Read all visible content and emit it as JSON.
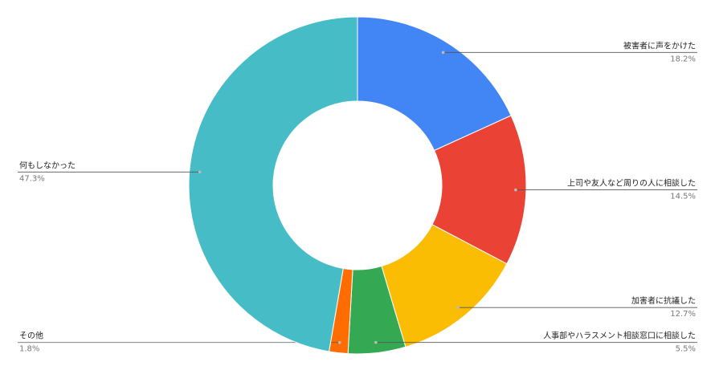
{
  "chart_data": {
    "type": "donut",
    "categories": [
      "被害者に声をかけた",
      "上司や友人など周りの人に相談した",
      "加害者に抗議した",
      "人事部やハラスメント相談窓口に相談した",
      "その他",
      "何もしなかった"
    ],
    "values": [
      18.2,
      14.5,
      12.7,
      5.5,
      1.8,
      47.3
    ],
    "value_labels": [
      "18.2%",
      "14.5%",
      "12.7%",
      "5.5%",
      "1.8%",
      "47.3%"
    ],
    "colors": [
      "#4285f4",
      "#ea4335",
      "#fbbc04",
      "#34a853",
      "#ff6d01",
      "#46bdc6"
    ]
  }
}
